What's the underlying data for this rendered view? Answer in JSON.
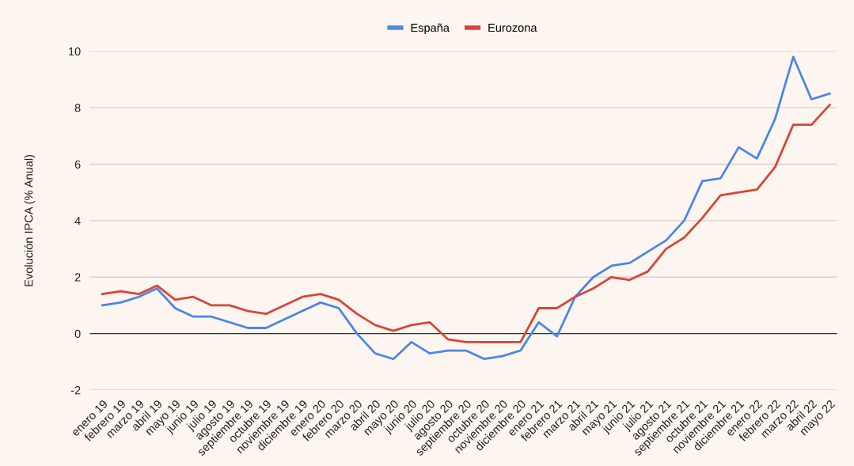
{
  "chart_data": {
    "type": "line",
    "ylabel": "Evolución IPCA (% Anual)",
    "categories": [
      "enero 19",
      "febrero 19",
      "marzo 19",
      "abril 19",
      "mayo 19",
      "junio 19",
      "julio 19",
      "agosto 19",
      "septiembre 19",
      "octubre 19",
      "noviembre 19",
      "diciembre 19",
      "enero 20",
      "febrero 20",
      "marzo 20",
      "abril 20",
      "mayo 20",
      "junio 20",
      "julio 20",
      "agosto 20",
      "septiembre 20",
      "octubre 20",
      "noviembre 20",
      "diciembre 20",
      "enero 21",
      "febrero 21",
      "marzo 21",
      "abril 21",
      "mayo 21",
      "junio 21",
      "julio 21",
      "agosto 21",
      "septiembre 21",
      "octubre 21",
      "noviembre 21",
      "diciembre 21",
      "enero 22",
      "febrero 22",
      "marzo 22",
      "abril 22",
      "mayo 22"
    ],
    "series": [
      {
        "name": "España",
        "color": "#4a86e8",
        "values": [
          1.0,
          1.1,
          1.3,
          1.6,
          0.9,
          0.6,
          0.6,
          0.4,
          0.2,
          0.2,
          0.5,
          0.8,
          1.1,
          0.9,
          0.0,
          -0.7,
          -0.9,
          -0.3,
          -0.7,
          -0.6,
          -0.6,
          -0.9,
          -0.8,
          -0.6,
          0.4,
          -0.1,
          1.3,
          2.0,
          2.4,
          2.5,
          2.9,
          3.3,
          4.0,
          5.4,
          5.5,
          6.6,
          6.2,
          7.6,
          9.8,
          8.3,
          8.5
        ]
      },
      {
        "name": "Eurozona",
        "color": "#db4437",
        "values": [
          1.4,
          1.5,
          1.4,
          1.7,
          1.2,
          1.3,
          1.0,
          1.0,
          0.8,
          0.7,
          1.0,
          1.3,
          1.4,
          1.2,
          0.7,
          0.3,
          0.1,
          0.3,
          0.4,
          -0.2,
          -0.3,
          -0.3,
          -0.3,
          -0.3,
          0.9,
          0.9,
          1.3,
          1.6,
          2.0,
          1.9,
          2.2,
          3.0,
          3.4,
          4.1,
          4.9,
          5.0,
          5.1,
          5.9,
          7.4,
          7.4,
          8.1
        ]
      }
    ],
    "ylim": [
      -2,
      10
    ],
    "yticks": [
      -2,
      0,
      2,
      4,
      6,
      8,
      10
    ],
    "ref_lines": [
      {
        "axis": "y",
        "value": 0,
        "color": "#333333"
      }
    ],
    "grid": "y",
    "legend": "top",
    "marker": "none",
    "line_style": "solid"
  }
}
